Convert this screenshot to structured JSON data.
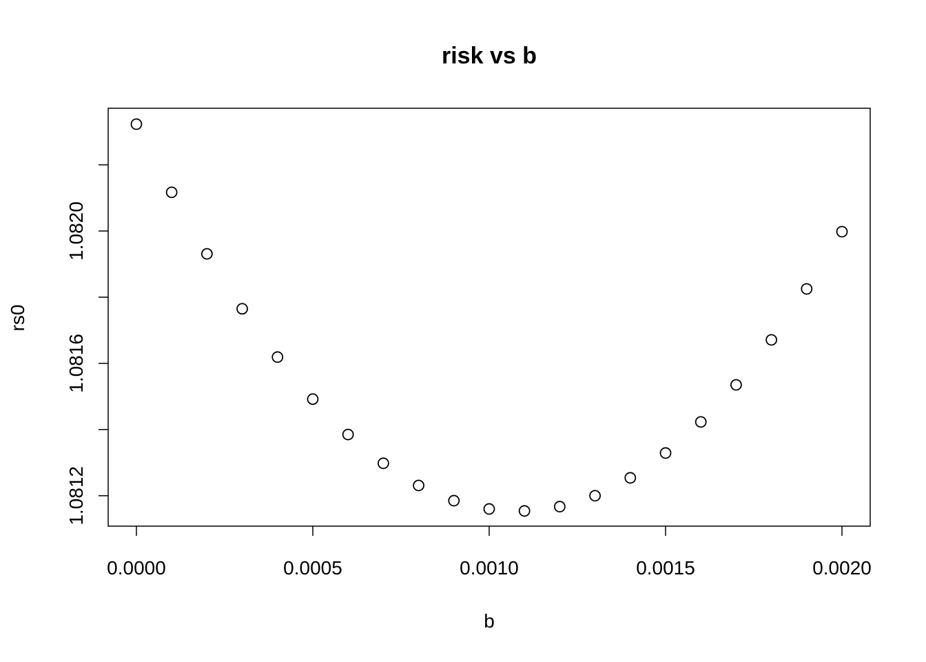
{
  "chart_data": {
    "type": "scatter",
    "title": "risk vs b",
    "x_label": "b",
    "y_label": "rs0",
    "x": [
      0,
      0.0001,
      0.0002,
      0.0003,
      0.0004,
      0.0005,
      0.0006,
      0.0007,
      0.0008,
      0.0009,
      0.001,
      0.0011,
      0.0012,
      0.0013,
      0.0014,
      0.0015,
      0.0016,
      0.0017,
      0.0018,
      0.0019,
      0.002
    ],
    "values": [
      1.082323,
      1.082117,
      1.081931,
      1.081765,
      1.081619,
      1.081492,
      1.081385,
      1.081298,
      1.081231,
      1.081185,
      1.08116,
      1.081154,
      1.081167,
      1.0812,
      1.081254,
      1.081329,
      1.081423,
      1.081535,
      1.081671,
      1.081825,
      1.081998
    ],
    "color": "#000000",
    "xlim": [
      -8e-05,
      0.00208
    ],
    "ylim": [
      1.081108,
      1.082371
    ],
    "xticks": [
      {
        "value": 0,
        "label": "0.0000"
      },
      {
        "value": 0.0005,
        "label": "0.0005"
      },
      {
        "value": 0.001,
        "label": "0.0010"
      },
      {
        "value": 0.0015,
        "label": "0.0015"
      },
      {
        "value": 0.002,
        "label": "0.0020"
      }
    ],
    "yticks": [
      1.0812,
      {
        "value": 1.0814,
        "label": null
      },
      1.0816,
      {
        "value": 1.0818,
        "label": null
      },
      {
        "value": 1.082,
        "label": "1.0820"
      },
      {
        "value": 1.0822,
        "label": null
      }
    ]
  }
}
